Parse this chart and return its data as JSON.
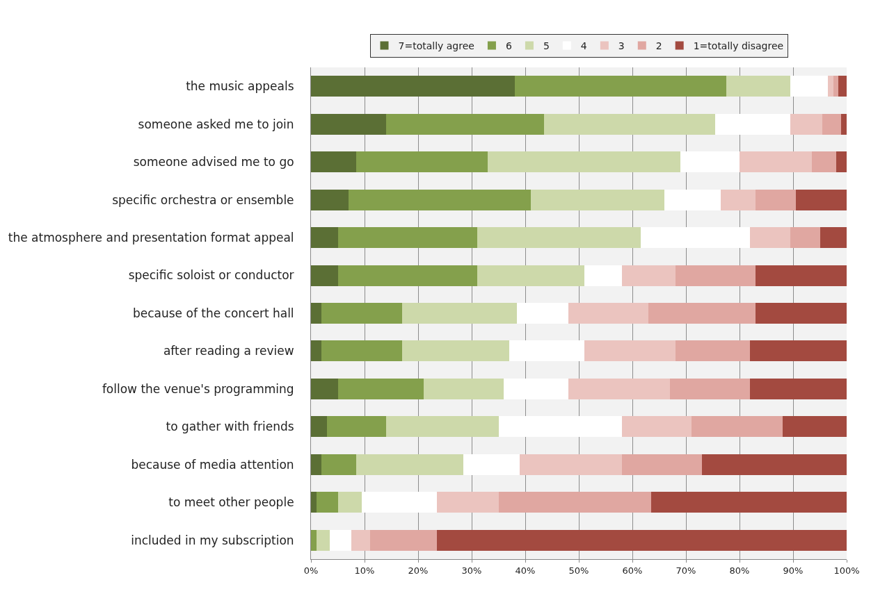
{
  "chart_data": {
    "type": "bar",
    "orientation": "horizontal",
    "stacked": true,
    "legend": "top",
    "grid": "x",
    "categories": [
      "the music appeals",
      "someone asked me to join",
      "someone advised me to go",
      "specific orchestra or ensemble",
      "the atmosphere and presentation format appeal",
      "specific soloist or conductor",
      "because of the concert hall",
      "after reading a review",
      "follow the venue's programming",
      "to gather with friends",
      "because of media attention",
      "to meet other people",
      "included in my subscription"
    ],
    "xlim": [
      0,
      100
    ],
    "xticks": [
      {
        "value": 0,
        "label": "0%"
      },
      {
        "value": 10,
        "label": "10%"
      },
      {
        "value": 20,
        "label": "20%"
      },
      {
        "value": 30,
        "label": "30%"
      },
      {
        "value": 40,
        "label": "40%"
      },
      {
        "value": 50,
        "label": "50%"
      },
      {
        "value": 60,
        "label": "60%"
      },
      {
        "value": 70,
        "label": "70%"
      },
      {
        "value": 80,
        "label": "80%"
      },
      {
        "value": 90,
        "label": "90%"
      },
      {
        "value": 100,
        "label": "100%"
      }
    ],
    "series": [
      {
        "name": "7=totally agree",
        "color": "#5b6f35",
        "values": [
          38,
          14,
          8.5,
          7,
          5,
          5,
          2,
          2,
          5,
          3,
          2,
          1,
          0
        ]
      },
      {
        "name": "6",
        "color": "#84a04c",
        "values": [
          39.5,
          29.5,
          24.5,
          34,
          26,
          26,
          15,
          15,
          16,
          11,
          6.5,
          4,
          1
        ]
      },
      {
        "name": "5",
        "color": "#cdd9aa",
        "values": [
          12,
          32,
          36,
          25,
          30.5,
          20,
          21.5,
          20,
          15,
          21,
          20,
          4.5,
          2.5
        ]
      },
      {
        "name": "4",
        "color": "#ffffff",
        "values": [
          7,
          14,
          11,
          10.5,
          20.5,
          7,
          9.5,
          14,
          12,
          23,
          10.5,
          14,
          4
        ]
      },
      {
        "name": "3",
        "color": "#ebc4bf",
        "values": [
          1,
          6,
          13.5,
          6.5,
          7.5,
          10,
          15,
          17,
          19,
          13,
          19,
          11.5,
          3.5
        ]
      },
      {
        "name": "2",
        "color": "#e0a7a1",
        "values": [
          1,
          3.5,
          4.5,
          7.5,
          5.5,
          15,
          20,
          14,
          15,
          17,
          15,
          28.5,
          12.5
        ]
      },
      {
        "name": "1=totally disagree",
        "color": "#a34a40",
        "values": [
          1.5,
          1,
          2,
          9.5,
          5,
          17,
          17,
          18,
          18,
          12,
          27,
          36.5,
          76.5
        ]
      }
    ]
  }
}
